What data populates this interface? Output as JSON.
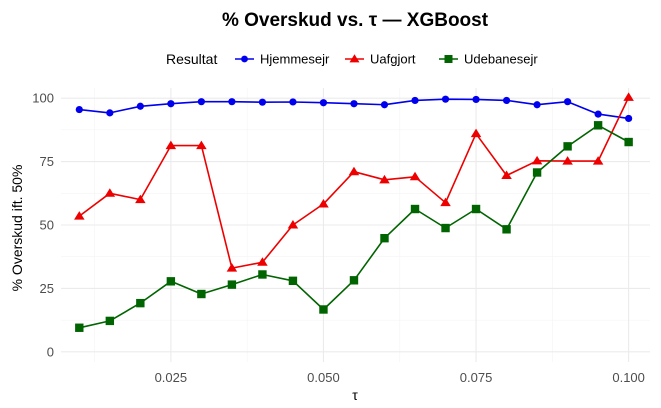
{
  "chart_data": {
    "type": "line",
    "title": "% Overskud vs. τ — XGBoost",
    "xlabel": "τ",
    "ylabel": "% Overskud ift. 50%",
    "xlim": [
      0.007,
      0.1035
    ],
    "ylim": [
      -4,
      104
    ],
    "x_ticks": [
      0.025,
      0.05,
      0.075,
      0.1
    ],
    "x_tick_labels": [
      "0.025",
      "0.050",
      "0.075",
      "0.100"
    ],
    "y_ticks": [
      0,
      25,
      50,
      75,
      100
    ],
    "y_tick_labels": [
      "0",
      "25",
      "50",
      "75",
      "100"
    ],
    "grid": true,
    "legend": {
      "title": "Resultat",
      "position": "top"
    },
    "x": [
      0.01,
      0.015,
      0.02,
      0.025,
      0.03,
      0.035,
      0.04,
      0.045,
      0.05,
      0.055,
      0.06,
      0.065,
      0.07,
      0.075,
      0.08,
      0.085,
      0.09,
      0.095,
      0.1
    ],
    "series": [
      {
        "name": "Hjemmesejr",
        "color": "#0000ee",
        "marker": "circle",
        "values": [
          95.5,
          94.2,
          96.8,
          97.8,
          98.6,
          98.6,
          98.4,
          98.5,
          98.2,
          97.8,
          97.4,
          99.1,
          99.6,
          99.5,
          99.1,
          97.4,
          98.6,
          93.7,
          92.0
        ]
      },
      {
        "name": "Uafgjort",
        "color": "#ee0000",
        "marker": "triangle",
        "values": [
          53.5,
          62.5,
          60.0,
          81.3,
          81.3,
          33.0,
          35.3,
          50.0,
          58.3,
          71.0,
          67.8,
          69.0,
          58.8,
          86.0,
          69.5,
          75.3,
          75.2,
          75.2,
          100.3
        ]
      },
      {
        "name": "Udebanesejr",
        "color": "#006400",
        "marker": "square",
        "values": [
          9.5,
          12.2,
          19.2,
          27.8,
          22.8,
          26.5,
          30.5,
          28.0,
          16.7,
          28.2,
          44.8,
          56.3,
          48.8,
          56.3,
          48.3,
          70.7,
          81.0,
          89.3,
          82.7
        ]
      }
    ]
  }
}
